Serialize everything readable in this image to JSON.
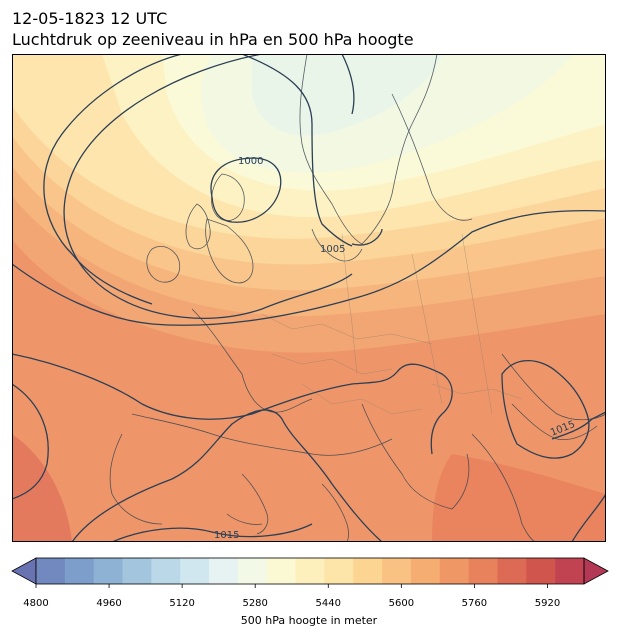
{
  "title": {
    "line1": "12-05-1823 12 UTC",
    "line2": "Luchtdruk op zeeniveau in hPa en 500 hPa hoogte"
  },
  "map": {
    "region": "Europe",
    "isobar_labels": [
      "1000",
      "1005",
      "1015",
      "1015"
    ],
    "isobar_color": "#2b3f55"
  },
  "colorbar": {
    "label": "500 hPa hoogte in meter",
    "ticks": [
      "4800",
      "4960",
      "5120",
      "5280",
      "5440",
      "5600",
      "5760",
      "5920"
    ],
    "range": [
      4800,
      6000
    ],
    "colors": [
      "#6a73b2",
      "#7189bf",
      "#7d9dca",
      "#8db2d3",
      "#a3c6de",
      "#bad8e8",
      "#d1e7f0",
      "#e6f3f2",
      "#f3f9e7",
      "#fbf9d3",
      "#fdf0bd",
      "#fde4a8",
      "#fcd593",
      "#f9c282",
      "#f5ad72",
      "#ef9866",
      "#e8825c",
      "#dd6a54",
      "#cf554d",
      "#c14352",
      "#b33855"
    ]
  }
}
